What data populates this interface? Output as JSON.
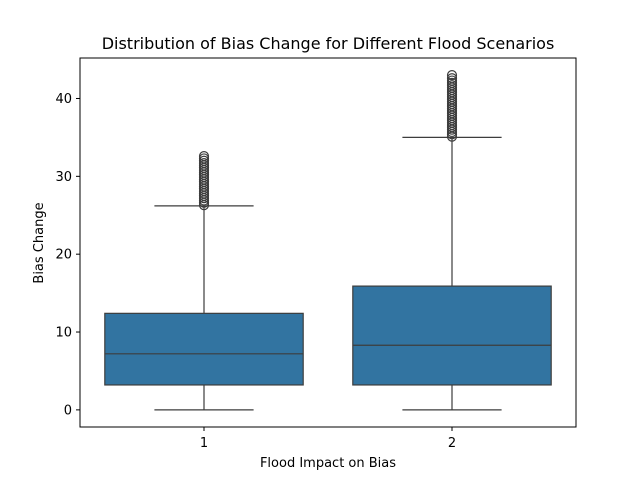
{
  "chart_data": {
    "type": "box",
    "title": "Distribution of Bias Change for Different Flood Scenarios",
    "xlabel": "Flood Impact on Bias",
    "ylabel": "Bias Change",
    "categories": [
      "1",
      "2"
    ],
    "ylim": [
      -2.2,
      45.2
    ],
    "yticks": [
      0,
      10,
      20,
      30,
      40
    ],
    "grid": false,
    "legend": "none",
    "color": "#3274a1",
    "boxes": [
      {
        "category": "1",
        "min": 0,
        "q1": 3.2,
        "median": 7.2,
        "q3": 12.4,
        "whisker_high": 26.2,
        "outliers": [
          26.3,
          26.6,
          26.9,
          27.2,
          27.5,
          27.8,
          28.1,
          28.4,
          28.7,
          29.0,
          29.3,
          29.6,
          29.9,
          30.2,
          30.5,
          30.8,
          31.1,
          31.4,
          31.7,
          32.0,
          32.3,
          32.6
        ]
      },
      {
        "category": "2",
        "min": 0,
        "q1": 3.2,
        "median": 8.3,
        "q3": 15.9,
        "whisker_high": 35.0,
        "outliers": [
          35.1,
          35.4,
          35.7,
          36.0,
          36.3,
          36.6,
          36.9,
          37.2,
          37.5,
          37.8,
          38.1,
          38.4,
          38.7,
          39.0,
          39.3,
          39.6,
          39.9,
          40.2,
          40.5,
          40.8,
          41.1,
          41.4,
          41.7,
          42.0,
          42.3,
          42.6,
          43.0
        ]
      }
    ]
  }
}
